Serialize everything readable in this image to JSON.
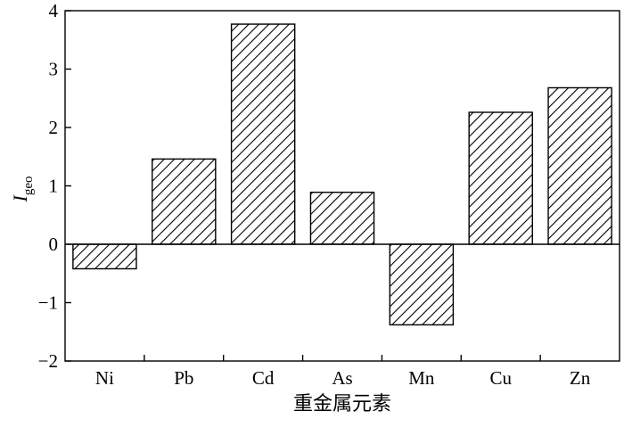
{
  "chart_data": {
    "type": "bar",
    "categories": [
      "Ni",
      "Pb",
      "Cd",
      "As",
      "Mn",
      "Cu",
      "Zn"
    ],
    "values": [
      -0.42,
      1.46,
      3.77,
      0.89,
      -1.38,
      2.26,
      2.68
    ],
    "title": "",
    "xlabel": "重金属元素",
    "ylabel": "I",
    "ylabel_sub": "geo",
    "ylim": [
      -2,
      4
    ],
    "yticks": [
      "−2",
      "−1",
      "0",
      "1",
      "2",
      "3",
      "4"
    ],
    "grid": false,
    "bar_fill": "diagonal-hatch",
    "colors": {
      "stroke": "#000000",
      "background": "#ffffff"
    }
  }
}
